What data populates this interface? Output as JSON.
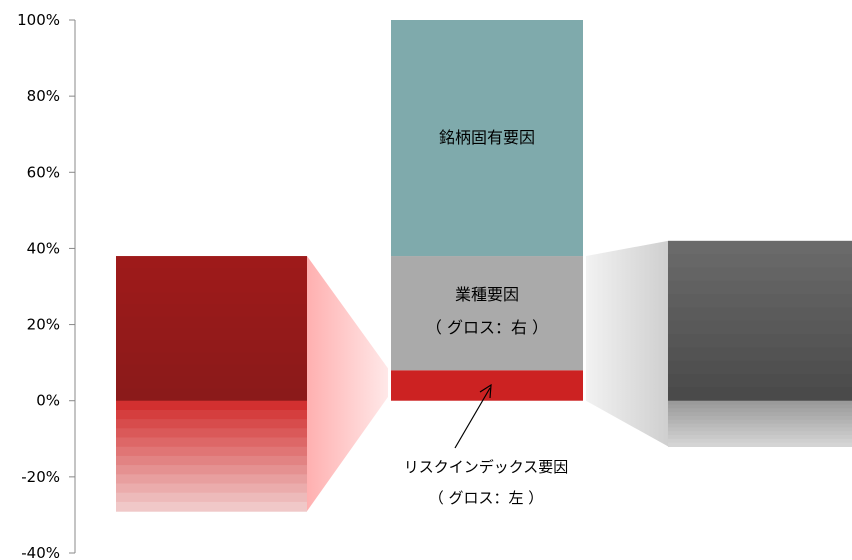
{
  "chart_data": {
    "type": "bar",
    "title": "",
    "ylim": [
      -40,
      100
    ],
    "yticks": [
      "100%",
      "80%",
      "60%",
      "40%",
      "20%",
      "0%",
      "-20%",
      "-40%"
    ],
    "grid": false,
    "legend": "none",
    "center_bar": {
      "segments": [
        {
          "from": 0,
          "to": 8,
          "label": "",
          "color": "#cc2222"
        },
        {
          "from": 8,
          "to": 38,
          "label": "業種要因",
          "sublabel": "（ グロス：右 ）",
          "color": "#aaaaaa"
        },
        {
          "from": 38,
          "to": 100,
          "label": "銘柄固有要因",
          "sublabel": "",
          "color": "#7faaac"
        }
      ]
    },
    "left_breakdown": {
      "top": 38,
      "bottom": -29,
      "pos_color": "#8b1a1a",
      "neg_color": "#f0c8c8"
    },
    "right_breakdown": {
      "top": 42,
      "bottom": -12,
      "pos_color": "#4a4a4a",
      "neg_color": "#d4d4d4"
    },
    "annotation": {
      "line1": "リスクインデックス要因",
      "line2": "（ グロス：左 ）"
    }
  }
}
